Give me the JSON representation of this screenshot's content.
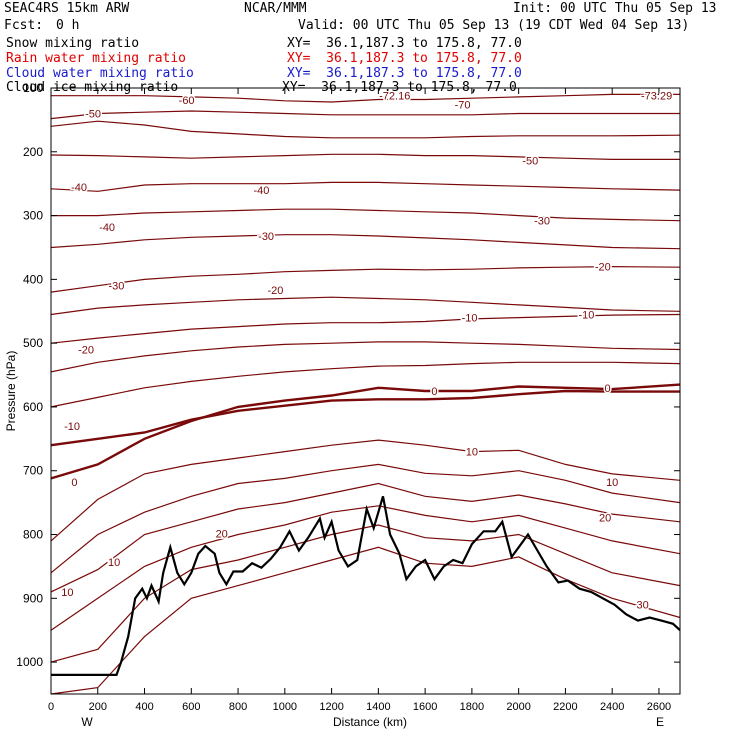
{
  "header": {
    "model": "SEAC4RS 15km ARW",
    "org": "NCAR/MMM",
    "init": "Init: 00 UTC Thu 05 Sep 13",
    "fcst_label": "Fcst:",
    "fcst_value": "0 h",
    "valid": "Valid: 00 UTC Thu 05 Sep 13 (19 CDT Wed 04 Sep 13)"
  },
  "legend": [
    {
      "name": "Snow mixing ratio",
      "xy": "XY=  36.1,187.3 to 175.8, 77.0",
      "color": "#000000"
    },
    {
      "name": "Rain water mixing ratio",
      "xy": "XY=  36.1,187.3 to 175.8, 77.0",
      "color": "#e00000"
    },
    {
      "name": "Cloud water mixing ratio",
      "xy": "XY=  36.1,187.3 to 175.8, 77.0",
      "color": "#1a1acc"
    },
    {
      "name": "Cloud ice mixing ratio",
      "xy": "XY=  36.1,187.3 to 175.8, 77.0",
      "color": "#000000"
    }
  ],
  "chart_data": {
    "type": "line",
    "xlabel": "Distance (km)",
    "ylabel": "Pressure (hPa)",
    "xlim": [
      0,
      2690
    ],
    "ylim": [
      1050,
      100
    ],
    "x_ticks": [
      "0",
      "200",
      "400",
      "600",
      "800",
      "1000",
      "1200",
      "1400",
      "1600",
      "1800",
      "2000",
      "2200",
      "2400",
      "2600"
    ],
    "y_ticks": [
      "100",
      "200",
      "300",
      "400",
      "500",
      "600",
      "700",
      "800",
      "900",
      "1000"
    ],
    "x_end_labels": {
      "left": "W",
      "right": "E"
    },
    "contour_color": "#7a0a0a",
    "terrain_color": "#000000",
    "contour_labels": [
      {
        "text": "-72.16",
        "x": 1470,
        "y": 112
      },
      {
        "text": "-73.29",
        "x": 2590,
        "y": 112
      },
      {
        "text": "-60",
        "x": 580,
        "y": 119
      },
      {
        "text": "-70",
        "x": 1760,
        "y": 126
      },
      {
        "text": "-50",
        "x": 180,
        "y": 140
      },
      {
        "text": "-50",
        "x": 2050,
        "y": 214
      },
      {
        "text": "-40",
        "x": 120,
        "y": 255
      },
      {
        "text": "-40",
        "x": 900,
        "y": 260
      },
      {
        "text": "-40",
        "x": 240,
        "y": 318
      },
      {
        "text": "-30",
        "x": 920,
        "y": 332
      },
      {
        "text": "-30",
        "x": 2100,
        "y": 308
      },
      {
        "text": "-30",
        "x": 280,
        "y": 410
      },
      {
        "text": "-20",
        "x": 960,
        "y": 417
      },
      {
        "text": "-20",
        "x": 2360,
        "y": 380
      },
      {
        "text": "-10",
        "x": 1790,
        "y": 460
      },
      {
        "text": "-10",
        "x": 2290,
        "y": 455
      },
      {
        "text": "-20",
        "x": 150,
        "y": 510
      },
      {
        "text": "-10",
        "x": 90,
        "y": 630
      },
      {
        "text": "0",
        "x": 1640,
        "y": 575
      },
      {
        "text": "0",
        "x": 2380,
        "y": 570
      },
      {
        "text": "0",
        "x": 100,
        "y": 718
      },
      {
        "text": "10",
        "x": 1800,
        "y": 670
      },
      {
        "text": "10",
        "x": 2400,
        "y": 718
      },
      {
        "text": "20",
        "x": 730,
        "y": 798
      },
      {
        "text": "20",
        "x": 2370,
        "y": 773
      },
      {
        "text": "10",
        "x": 270,
        "y": 843
      },
      {
        "text": "10",
        "x": 70,
        "y": 890
      },
      {
        "text": "30",
        "x": 2530,
        "y": 910
      }
    ]
  }
}
